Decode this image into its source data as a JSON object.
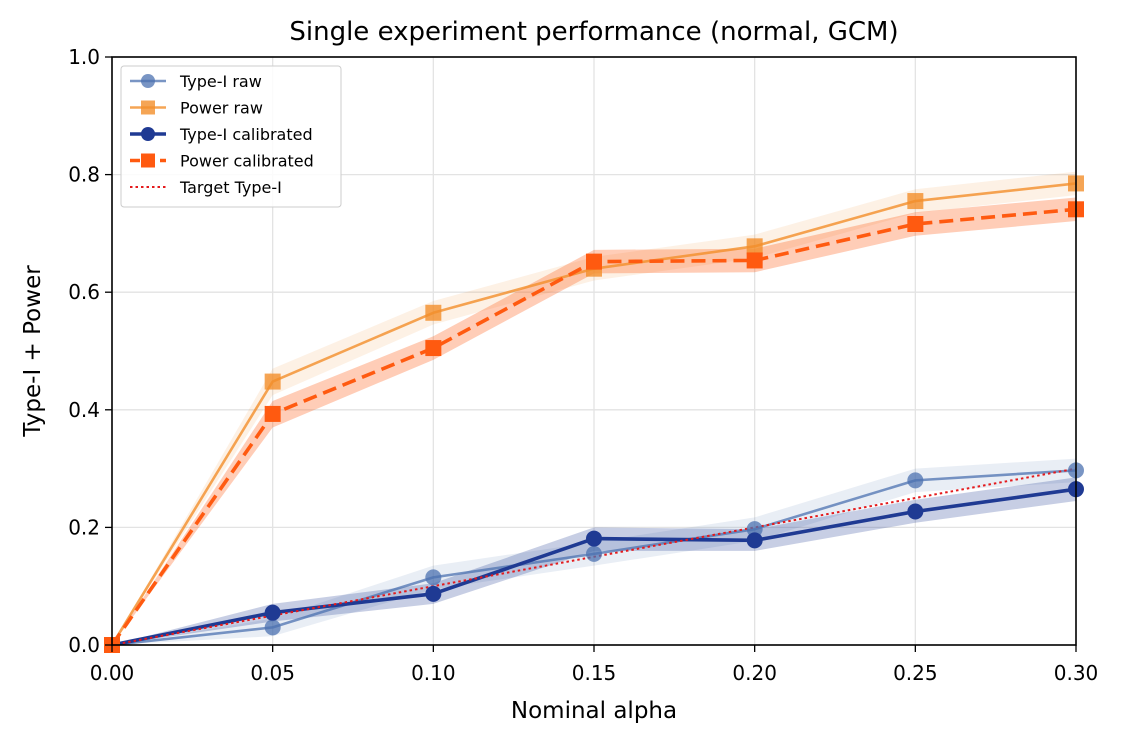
{
  "chart_data": {
    "type": "line",
    "title": "Single experiment performance (normal, GCM)",
    "xlabel": "Nominal alpha",
    "ylabel": "Type-I + Power",
    "xlim": [
      0.0,
      0.3
    ],
    "ylim": [
      0.0,
      1.0
    ],
    "grid": true,
    "legend_position": "top-left",
    "x": [
      0.0,
      0.05,
      0.1,
      0.15,
      0.2,
      0.25,
      0.3
    ],
    "x_ticks": [
      "0.00",
      "0.05",
      "0.10",
      "0.15",
      "0.20",
      "0.25",
      "0.30"
    ],
    "y_ticks": [
      "0.0",
      "0.2",
      "0.4",
      "0.6",
      "0.8",
      "1.0"
    ],
    "x_tick_values": [
      0.0,
      0.05,
      0.1,
      0.15,
      0.2,
      0.25,
      0.3
    ],
    "y_tick_values": [
      0.0,
      0.2,
      0.4,
      0.6,
      0.8,
      1.0
    ],
    "series": [
      {
        "name": "Type-I raw",
        "values": [
          0.0,
          0.03,
          0.115,
          0.155,
          0.197,
          0.28,
          0.297
        ],
        "band_lower": [
          0.0,
          0.015,
          0.095,
          0.135,
          0.177,
          0.26,
          0.277
        ],
        "band_upper": [
          0.0,
          0.045,
          0.135,
          0.175,
          0.217,
          0.3,
          0.317
        ],
        "color": "#4c72b0",
        "marker": "circle",
        "line_style": "solid",
        "alpha": 0.75,
        "band_alpha": 0.12
      },
      {
        "name": "Power raw",
        "values": [
          0.0,
          0.448,
          0.565,
          0.64,
          0.678,
          0.755,
          0.785
        ],
        "band_lower": [
          0.0,
          0.425,
          0.545,
          0.62,
          0.658,
          0.735,
          0.765
        ],
        "band_upper": [
          0.0,
          0.47,
          0.585,
          0.66,
          0.698,
          0.775,
          0.805
        ],
        "color": "#f28e2b",
        "marker": "square",
        "line_style": "solid",
        "alpha": 0.8,
        "band_alpha": 0.12
      },
      {
        "name": "Type-I calibrated",
        "values": [
          0.0,
          0.055,
          0.087,
          0.181,
          0.178,
          0.227,
          0.265
        ],
        "band_lower": [
          0.0,
          0.04,
          0.07,
          0.16,
          0.16,
          0.208,
          0.245
        ],
        "band_upper": [
          0.0,
          0.07,
          0.105,
          0.2,
          0.197,
          0.247,
          0.285
        ],
        "color": "#1f3a93",
        "marker": "circle",
        "line_style": "solid",
        "alpha": 1.0,
        "band_alpha": 0.25
      },
      {
        "name": "Power calibrated",
        "values": [
          0.0,
          0.393,
          0.505,
          0.652,
          0.654,
          0.716,
          0.741
        ],
        "band_lower": [
          0.0,
          0.37,
          0.485,
          0.632,
          0.634,
          0.696,
          0.721
        ],
        "band_upper": [
          0.0,
          0.415,
          0.525,
          0.672,
          0.674,
          0.736,
          0.761
        ],
        "color": "#ff5a10",
        "marker": "square",
        "line_style": "dashed",
        "alpha": 1.0,
        "band_alpha": 0.3
      },
      {
        "name": "Target Type-I",
        "values": [
          0.0,
          0.05,
          0.1,
          0.15,
          0.2,
          0.25,
          0.3
        ],
        "color": "#e41a1c",
        "marker": "none",
        "line_style": "dotted",
        "alpha": 1.0
      }
    ]
  }
}
